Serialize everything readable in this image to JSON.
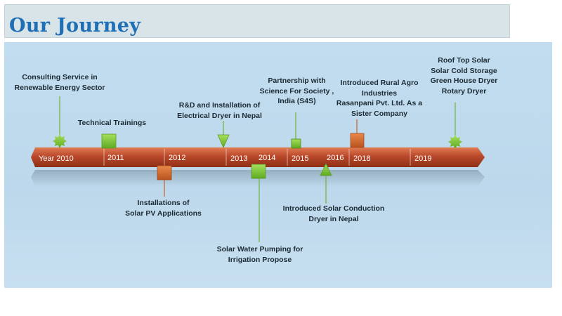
{
  "title": "Our Journey",
  "colors": {
    "title": "#1f6fb6",
    "arrow": "#b94a28",
    "marker_green": "#7cc63a",
    "marker_orange": "#d1692b"
  },
  "years": [
    "Year 2010",
    "2011",
    "2012",
    "2013",
    "2014",
    "2015",
    "2016",
    "2018",
    "2019"
  ],
  "events": {
    "consulting": "Consulting Service in\nRenewable Energy Sector",
    "technical_trainings": "Technical Trainings",
    "rd_dryer": "R&D and Installation of\nElectrical Dryer in Nepal",
    "partnership": "Partnership  with\nScience For Society ,\nIndia (S4S)",
    "rural_agro": "Introduced Rural Agro\nIndustries\nRasanpani  Pvt. Ltd. As a\nSister Company",
    "roof_top": "Roof Top Solar\nSolar Cold Storage\nGreen House Dryer\nRotary Dryer",
    "solar_pv": "Installations of\nSolar PV Applications",
    "solar_conduction": "Introduced  Solar Conduction\nDryer in Nepal",
    "water_pumping": "Solar Water Pumping for\nIrrigation Propose"
  }
}
